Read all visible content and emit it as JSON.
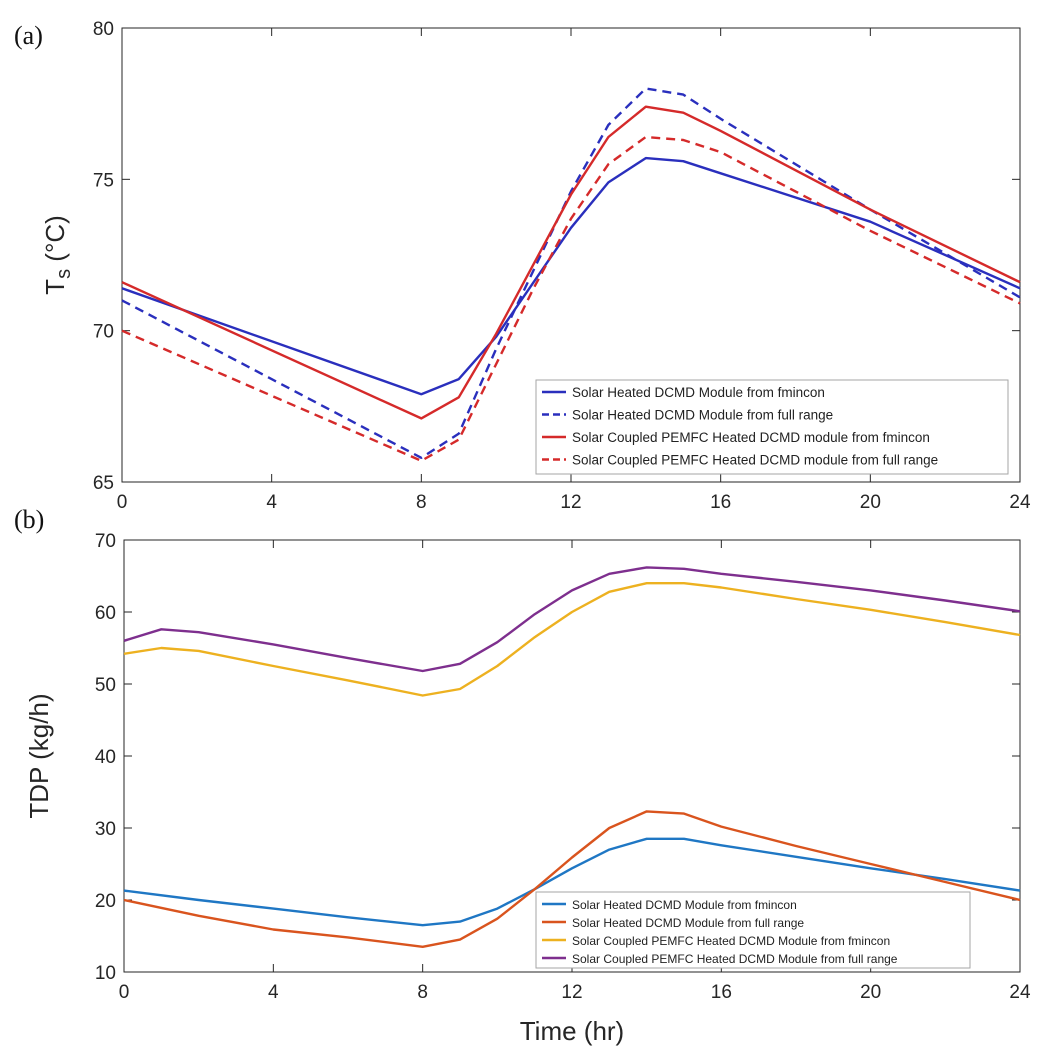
{
  "chart_data": [
    {
      "panel_label": "(a)",
      "type": "line",
      "xlabel": "",
      "ylabel": "T",
      "ylabel_subscript": "s",
      "ylabel_unit": " (°C)",
      "xlim": [
        0,
        24
      ],
      "ylim": [
        65,
        80
      ],
      "xticks": [
        0,
        4,
        8,
        12,
        16,
        20,
        24
      ],
      "yticks": [
        65,
        70,
        75,
        80
      ],
      "grid": false,
      "legend_position": "bottom-right",
      "series": [
        {
          "name": "Solar Heated DCMD Module from fmincon",
          "color": "#2a2fbd",
          "dash": "solid",
          "x": [
            0,
            8,
            9,
            10,
            11,
            12,
            13,
            14,
            15,
            16,
            20,
            24
          ],
          "y": [
            71.4,
            67.9,
            68.4,
            69.8,
            71.6,
            73.4,
            74.9,
            75.7,
            75.6,
            75.2,
            73.6,
            71.4
          ]
        },
        {
          "name": "Solar Heated DCMD Module from full range",
          "color": "#2a2fbd",
          "dash": "dashed",
          "x": [
            0,
            8,
            9,
            10,
            11,
            12,
            13,
            14,
            15,
            16,
            20,
            24
          ],
          "y": [
            71.0,
            65.8,
            66.6,
            69.4,
            72.0,
            74.6,
            76.8,
            78.0,
            77.8,
            77.0,
            74.0,
            71.1
          ]
        },
        {
          "name": "Solar Coupled PEMFC Heated DCMD module from fmincon",
          "color": "#d52a2a",
          "dash": "solid",
          "x": [
            0,
            8,
            9,
            10,
            11,
            12,
            13,
            14,
            15,
            16,
            20,
            24
          ],
          "y": [
            71.6,
            67.1,
            67.8,
            69.9,
            72.2,
            74.5,
            76.4,
            77.4,
            77.2,
            76.6,
            74.0,
            71.6
          ]
        },
        {
          "name": "Solar Coupled PEMFC Heated DCMD module from full range",
          "color": "#d52a2a",
          "dash": "dashed",
          "x": [
            0,
            8,
            9,
            10,
            11,
            12,
            13,
            14,
            15,
            16,
            20,
            24
          ],
          "y": [
            70.0,
            65.7,
            66.4,
            68.9,
            71.4,
            73.7,
            75.5,
            76.4,
            76.3,
            75.9,
            73.3,
            70.9
          ]
        }
      ]
    },
    {
      "panel_label": "(b)",
      "type": "line",
      "xlabel": "Time (hr)",
      "ylabel": "TDP (kg/h)",
      "xlim": [
        0,
        24
      ],
      "ylim": [
        10,
        70
      ],
      "xticks": [
        0,
        4,
        8,
        12,
        16,
        20,
        24
      ],
      "yticks": [
        10,
        20,
        30,
        40,
        50,
        60,
        70
      ],
      "grid": false,
      "legend_position": "bottom-right",
      "series": [
        {
          "name": "Solar Heated DCMD Module from fmincon",
          "color": "#1f77c4",
          "dash": "solid",
          "x": [
            0,
            2,
            4,
            6,
            8,
            9,
            10,
            11,
            12,
            13,
            14,
            15,
            16,
            18,
            20,
            22,
            24
          ],
          "y": [
            21.3,
            20.0,
            18.8,
            17.6,
            16.5,
            17.0,
            18.8,
            21.5,
            24.4,
            27.0,
            28.5,
            28.5,
            27.6,
            26.0,
            24.4,
            22.9,
            21.3
          ]
        },
        {
          "name": "Solar Heated DCMD Module from full range",
          "color": "#d9541e",
          "dash": "solid",
          "x": [
            0,
            2,
            4,
            6,
            8,
            9,
            10,
            11,
            12,
            13,
            14,
            15,
            16,
            18,
            20,
            22,
            24
          ],
          "y": [
            20.0,
            17.8,
            15.9,
            14.8,
            13.5,
            14.5,
            17.4,
            21.5,
            25.9,
            30.0,
            32.3,
            32.0,
            30.2,
            27.5,
            25.0,
            22.5,
            20.0
          ]
        },
        {
          "name": "Solar Coupled PEMFC Heated DCMD Module from fmincon",
          "color": "#edb120",
          "dash": "solid",
          "x": [
            0,
            1,
            2,
            4,
            6,
            8,
            9,
            10,
            11,
            12,
            13,
            14,
            15,
            16,
            18,
            20,
            22,
            24
          ],
          "y": [
            54.2,
            55.0,
            54.6,
            52.5,
            50.5,
            48.4,
            49.3,
            52.5,
            56.5,
            60.0,
            62.8,
            64.0,
            64.0,
            63.4,
            61.8,
            60.3,
            58.6,
            56.8
          ]
        },
        {
          "name": "Solar Coupled PEMFC Heated DCMD Module from full range",
          "color": "#7e2f8e",
          "dash": "solid",
          "x": [
            0,
            1,
            2,
            4,
            6,
            8,
            9,
            10,
            11,
            12,
            13,
            14,
            15,
            16,
            18,
            20,
            22,
            24
          ],
          "y": [
            56.0,
            57.6,
            57.2,
            55.5,
            53.6,
            51.8,
            52.8,
            55.8,
            59.7,
            63.0,
            65.3,
            66.2,
            66.0,
            65.3,
            64.2,
            63.0,
            61.6,
            60.1
          ]
        }
      ]
    }
  ]
}
